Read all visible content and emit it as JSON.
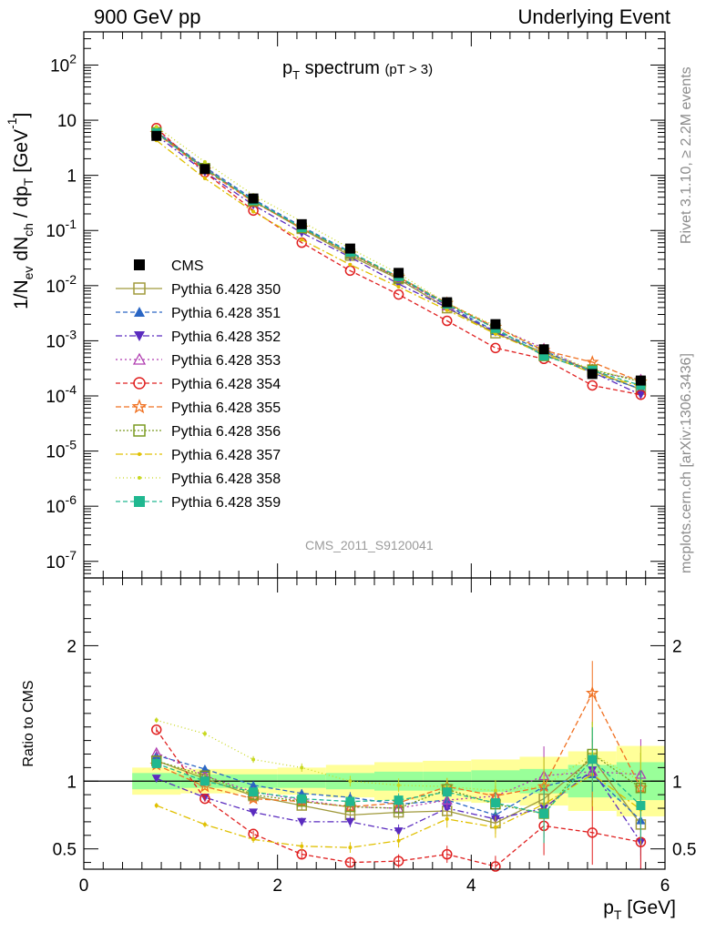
{
  "header": {
    "left": "900 GeV pp",
    "right": "Underlying Event"
  },
  "side_labels": {
    "rivet": "Rivet 3.1.10, ≥ 2.2M events",
    "mcplots": "mcplots.cern.ch [arXiv:1306.3436]"
  },
  "analysis_label": "CMS_2011_S9120041",
  "chart_data": [
    {
      "type": "line",
      "title": "p_T spectrum (pT > 3)",
      "title_main": "spectrum",
      "title_note": "(pT > 3)",
      "ylabel": "1/N_ev dN_ch / dp_T [GeV^-1]",
      "yscale": "log",
      "ylim": [
        5e-08,
        400
      ],
      "xlim": [
        0,
        6
      ],
      "ytick_labels": [
        "10^-7",
        "10^-6",
        "10^-5",
        "10^-4",
        "10^-3",
        "10^-2",
        "10^-1",
        "1",
        "10",
        "10^2"
      ],
      "legend_position": "center-left",
      "x": [
        0.75,
        1.25,
        1.75,
        2.25,
        2.75,
        3.25,
        3.75,
        4.25,
        4.75,
        5.25,
        5.75
      ],
      "data_series": {
        "name": "CMS",
        "values": [
          5.2,
          1.3,
          0.38,
          0.13,
          0.047,
          0.017,
          0.005,
          0.002,
          0.0007,
          0.00025,
          0.00019
        ]
      },
      "series": [
        {
          "name": "Pythia 6.428 350",
          "color": "#a09a3c",
          "dash": "",
          "marker": "square-open",
          "values": [
            6.0,
            1.33,
            0.34,
            0.107,
            0.035,
            0.0131,
            0.0039,
            0.00137,
            0.00061,
            0.00029,
            0.00013
          ]
        },
        {
          "name": "Pythia 6.428 351",
          "color": "#2a66c4",
          "dash": "5,3",
          "marker": "triangle-up",
          "values": [
            6.2,
            1.42,
            0.37,
            0.118,
            0.041,
            0.0141,
            0.0043,
            0.00149,
            0.00067,
            0.00026,
            0.000135
          ]
        },
        {
          "name": "Pythia 6.428 352",
          "color": "#5a2bbf",
          "dash": "7,3,2,3",
          "marker": "triangle-down",
          "values": [
            5.3,
            1.15,
            0.29,
            0.091,
            0.033,
            0.0107,
            0.004,
            0.00144,
            0.00056,
            0.00027,
            0.000105
          ]
        },
        {
          "name": "Pythia 6.428 353",
          "color": "#b03cb0",
          "dash": "2,3",
          "marker": "triangle-open",
          "values": [
            6.3,
            1.35,
            0.35,
            0.112,
            0.038,
            0.0136,
            0.0043,
            0.00177,
            0.00073,
            0.00027,
            0.0002
          ]
        },
        {
          "name": "Pythia 6.428 354",
          "color": "#e02020",
          "dash": "5,3",
          "marker": "circle-open",
          "values": [
            7.2,
            1.13,
            0.23,
            0.06,
            0.0187,
            0.0069,
            0.0023,
            0.00074,
            0.00047,
            0.000155,
            0.000105
          ]
        },
        {
          "name": "Pythia 6.428 355",
          "color": "#f07020",
          "dash": "6,3",
          "marker": "star-open",
          "values": [
            5.8,
            1.25,
            0.33,
            0.111,
            0.038,
            0.0143,
            0.0048,
            0.00177,
            0.00067,
            0.00041,
            0.00018
          ]
        },
        {
          "name": "Pythia 6.428 356",
          "color": "#7a9a20",
          "dash": "2,2",
          "marker": "square-open",
          "values": [
            6.0,
            1.35,
            0.34,
            0.111,
            0.038,
            0.0136,
            0.0047,
            0.00167,
            0.00053,
            0.0003,
            0.00018
          ]
        },
        {
          "name": "Pythia 6.428 357",
          "color": "#e0c000",
          "dash": "8,3,2,3",
          "marker": "dot",
          "values": [
            4.3,
            0.88,
            0.22,
            0.068,
            0.024,
            0.0095,
            0.0036,
            0.00133,
            0.00058,
            0.00026,
            0.00015
          ]
        },
        {
          "name": "Pythia 6.428 358",
          "color": "#c8d820",
          "dash": "1,3",
          "marker": "dot",
          "values": [
            7.6,
            1.75,
            0.44,
            0.145,
            0.047,
            0.0165,
            0.0048,
            0.00186,
            0.00067,
            0.0003,
            0.00019
          ]
        },
        {
          "name": "Pythia 6.428 359",
          "color": "#20b890",
          "dash": "5,3",
          "marker": "square",
          "values": [
            5.9,
            1.3,
            0.35,
            0.113,
            0.04,
            0.0146,
            0.0046,
            0.00168,
            0.00053,
            0.00029,
            0.000155
          ]
        }
      ]
    },
    {
      "type": "line",
      "ylabel": "Ratio to CMS",
      "xlabel": "p_T [GeV]",
      "xlim": [
        0,
        6
      ],
      "ylim": [
        0.35,
        2.5
      ],
      "xtick_labels": [
        "0",
        "2",
        "4",
        "6"
      ],
      "ytick_labels": [
        "0.5",
        "1",
        "2"
      ],
      "x": [
        0.75,
        1.25,
        1.75,
        2.25,
        2.75,
        3.25,
        3.75,
        4.25,
        4.75,
        5.25,
        5.75
      ],
      "bands": {
        "inner": [
          0.06,
          0.05,
          0.05,
          0.05,
          0.06,
          0.07,
          0.07,
          0.08,
          0.09,
          0.12,
          0.14
        ],
        "outer": [
          0.1,
          0.09,
          0.09,
          0.1,
          0.12,
          0.14,
          0.15,
          0.16,
          0.18,
          0.22,
          0.26
        ]
      },
      "series": [
        {
          "name": "Pythia 6.428 350",
          "values": [
            1.15,
            1.02,
            0.89,
            0.82,
            0.75,
            0.77,
            0.78,
            0.69,
            0.87,
            1.17,
            0.68
          ]
        },
        {
          "name": "Pythia 6.428 351",
          "values": [
            1.19,
            1.09,
            0.97,
            0.91,
            0.88,
            0.83,
            0.86,
            0.75,
            0.96,
            1.05,
            0.71
          ]
        },
        {
          "name": "Pythia 6.428 352",
          "values": [
            1.02,
            0.88,
            0.77,
            0.7,
            0.7,
            0.63,
            0.8,
            0.72,
            0.8,
            1.08,
            0.55
          ]
        },
        {
          "name": "Pythia 6.428 353",
          "values": [
            1.21,
            1.04,
            0.92,
            0.86,
            0.81,
            0.8,
            0.86,
            0.89,
            1.04,
            1.07,
            1.05
          ]
        },
        {
          "name": "Pythia 6.428 354",
          "values": [
            1.38,
            0.87,
            0.61,
            0.46,
            0.4,
            0.41,
            0.46,
            0.37,
            0.67,
            0.62,
            0.55
          ]
        },
        {
          "name": "Pythia 6.428 355",
          "values": [
            1.12,
            0.96,
            0.87,
            0.85,
            0.81,
            0.84,
            0.96,
            0.89,
            0.96,
            1.65,
            0.95
          ]
        },
        {
          "name": "Pythia 6.428 356",
          "values": [
            1.15,
            1.04,
            0.9,
            0.85,
            0.81,
            0.8,
            0.94,
            0.83,
            0.76,
            1.2,
            0.95
          ]
        },
        {
          "name": "Pythia 6.428 357",
          "values": [
            0.82,
            0.68,
            0.57,
            0.52,
            0.51,
            0.56,
            0.72,
            0.66,
            0.83,
            1.05,
            0.79
          ]
        },
        {
          "name": "Pythia 6.428 358",
          "values": [
            1.45,
            1.35,
            1.16,
            1.1,
            1.0,
            0.97,
            0.96,
            0.93,
            0.96,
            1.2,
            1.0
          ]
        },
        {
          "name": "Pythia 6.428 359",
          "values": [
            1.13,
            1.0,
            0.92,
            0.87,
            0.85,
            0.86,
            0.92,
            0.84,
            0.76,
            1.16,
            0.82
          ]
        }
      ]
    }
  ]
}
